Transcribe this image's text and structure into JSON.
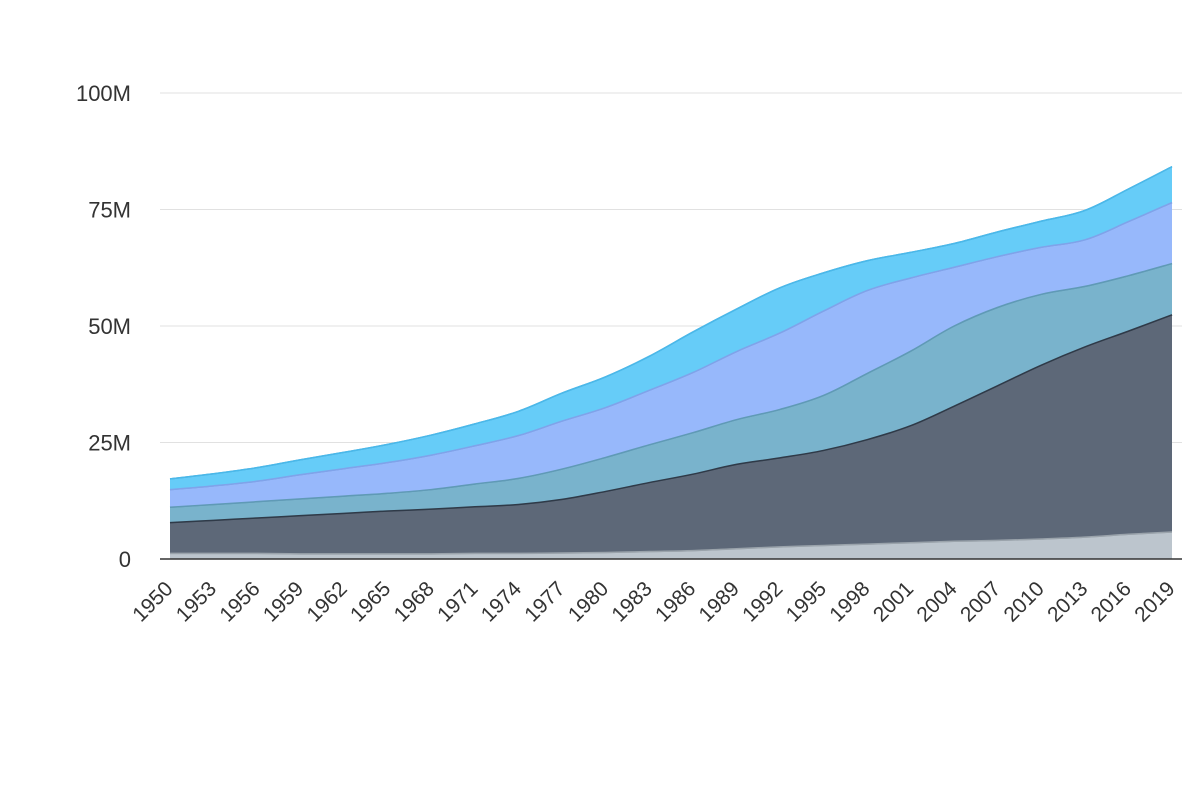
{
  "chart_data": {
    "type": "area",
    "stacked": true,
    "title": "",
    "xlabel": "",
    "ylabel": "",
    "x": [
      1950,
      1953,
      1956,
      1959,
      1962,
      1965,
      1968,
      1971,
      1974,
      1977,
      1980,
      1983,
      1986,
      1989,
      1992,
      1995,
      1998,
      2001,
      2004,
      2007,
      2010,
      2013,
      2016,
      2019
    ],
    "x_tick_labels": [
      "1950",
      "1953",
      "1956",
      "1959",
      "1962",
      "1965",
      "1968",
      "1971",
      "1974",
      "1977",
      "1980",
      "1983",
      "1986",
      "1989",
      "1992",
      "1995",
      "1998",
      "2001",
      "2004",
      "2007",
      "2010",
      "2013",
      "2016",
      "2019"
    ],
    "ylim": [
      0,
      100000000
    ],
    "y_ticks": [
      0,
      25000000,
      50000000,
      75000000,
      100000000
    ],
    "y_tick_labels": [
      "0",
      "25M",
      "50M",
      "75M",
      "100M"
    ],
    "grid": true,
    "legend": "none",
    "series": [
      {
        "color": "#bcc5cd",
        "values": [
          1200000,
          1200000,
          1200000,
          1100000,
          1100000,
          1100000,
          1100000,
          1200000,
          1200000,
          1300000,
          1400000,
          1600000,
          1800000,
          2200000,
          2600000,
          2900000,
          3200000,
          3500000,
          3800000,
          4000000,
          4300000,
          4700000,
          5300000,
          5800000
        ]
      },
      {
        "color": "#5d6878",
        "values": [
          6600000,
          7100000,
          7600000,
          8200000,
          8700000,
          9200000,
          9600000,
          10000000,
          10500000,
          11500000,
          13100000,
          14800000,
          16400000,
          18100000,
          19100000,
          20400000,
          22400000,
          25100000,
          29000000,
          33200000,
          37300000,
          40800000,
          43600000,
          46600000
        ]
      },
      {
        "color": "#79b3cc",
        "values": [
          3300000,
          3400000,
          3500000,
          3600000,
          3700000,
          3800000,
          4200000,
          4900000,
          5600000,
          6500000,
          7300000,
          8100000,
          8900000,
          9600000,
          10400000,
          11800000,
          14200000,
          16000000,
          17200000,
          16800000,
          15200000,
          13000000,
          11900000,
          11000000
        ]
      },
      {
        "color": "#97b8fb",
        "values": [
          3800000,
          4000000,
          4400000,
          5200000,
          5900000,
          6600000,
          7400000,
          8200000,
          9200000,
          10300000,
          10700000,
          11700000,
          12900000,
          14600000,
          16400000,
          18100000,
          17800000,
          15700000,
          12600000,
          10900000,
          10100000,
          10000000,
          11600000,
          13100000
        ]
      },
      {
        "color": "#66ccf8",
        "values": [
          2300000,
          2600000,
          2900000,
          3200000,
          3500000,
          3900000,
          4300000,
          4700000,
          5200000,
          6000000,
          6600000,
          7300000,
          8700000,
          9100000,
          9700000,
          8200000,
          6400000,
          5500000,
          5100000,
          5300000,
          5600000,
          6300000,
          7000000,
          7700000
        ]
      }
    ]
  }
}
